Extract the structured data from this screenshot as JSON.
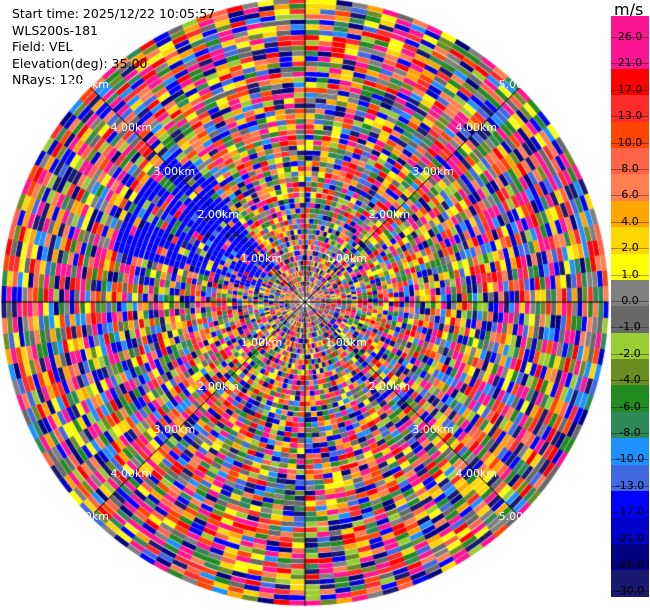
{
  "info": {
    "start_time": "Start time: 2025/12/22 10:05:57",
    "site": "WLS200s-181",
    "field": "Field: VEL",
    "elevation": "Elevation(deg): 35.00",
    "nrays": "NRays: 120"
  },
  "colorbar": {
    "unit": "m/s",
    "ticks": [
      "26.0",
      "21.0",
      "17.0",
      "13.0",
      "10.0",
      "8.0",
      "6.0",
      "4.0",
      "2.0",
      "1.0",
      "0.0",
      "-1.0",
      "-2.0",
      "-4.0",
      "-6.0",
      "-8.0",
      "-10.0",
      "-13.0",
      "-17.0",
      "-21.0",
      "-26.0",
      "-30.0"
    ],
    "colors": [
      "#ff1493",
      "#ff1493",
      "#ff0000",
      "#ff2a2a",
      "#ff4500",
      "#ff6347",
      "#ff7f50",
      "#ffa500",
      "#ffd700",
      "#ffff00",
      "#808080",
      "#696969",
      "#9acd32",
      "#6b8e23",
      "#228b22",
      "#2e8b57",
      "#1e90ff",
      "#4169e1",
      "#0000ff",
      "#0000cd",
      "#000080",
      "#191970"
    ]
  },
  "range_labels": [
    "1.00km",
    "1.00km",
    "1.00km",
    "1.00km",
    "2.00km",
    "2.00km",
    "2.00km",
    "2.00km",
    "3.00km",
    "3.00km",
    "3.00km",
    "3.00km",
    "4.00km",
    "4.00km",
    "4.00km",
    "4.00km",
    "5.00km",
    "5.00km",
    "5.00km",
    "5.00km"
  ]
}
